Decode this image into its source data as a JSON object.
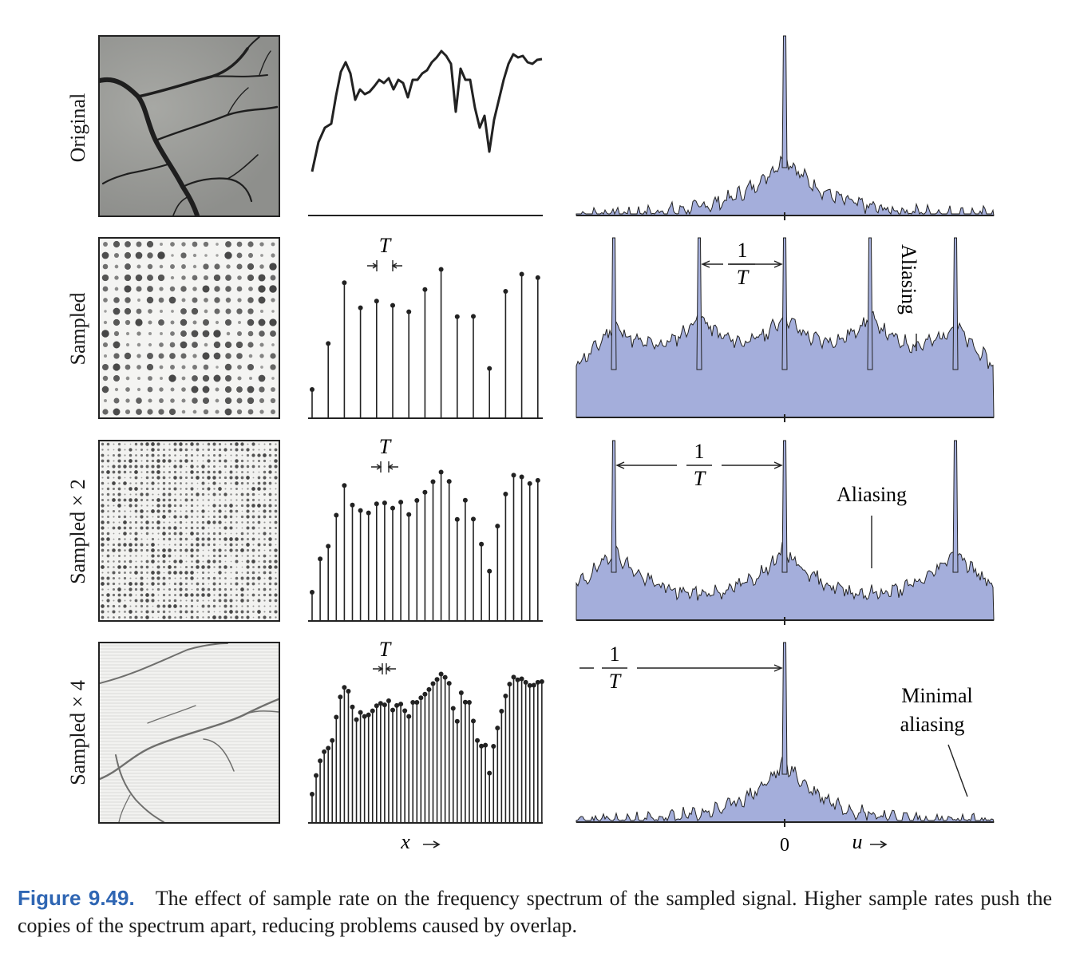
{
  "figure": {
    "row_labels": [
      "Original",
      "Sampled",
      "Sampled × 2",
      "Sampled × 4"
    ],
    "x_axis_label": "x",
    "u_axis_label": "u",
    "origin_label": "0",
    "period_label": "T",
    "freq_label_numerator": "1",
    "freq_label_denominator": "T",
    "annotations": {
      "sampled": "Aliasing",
      "sampled_x2": "Aliasing",
      "sampled_x4_line1": "Minimal",
      "sampled_x4_line2": "aliasing"
    },
    "colors": {
      "spectrum_fill": "#a4aedb",
      "ink": "#222222",
      "figure_number": "#2f66b3"
    }
  },
  "caption": {
    "number": "Figure 9.49.",
    "text": "The effect of sample rate on the frequency spectrum of the sampled signal. Higher sample rates push the copies of the spectrum apart, reducing problems caused by overlap."
  }
}
